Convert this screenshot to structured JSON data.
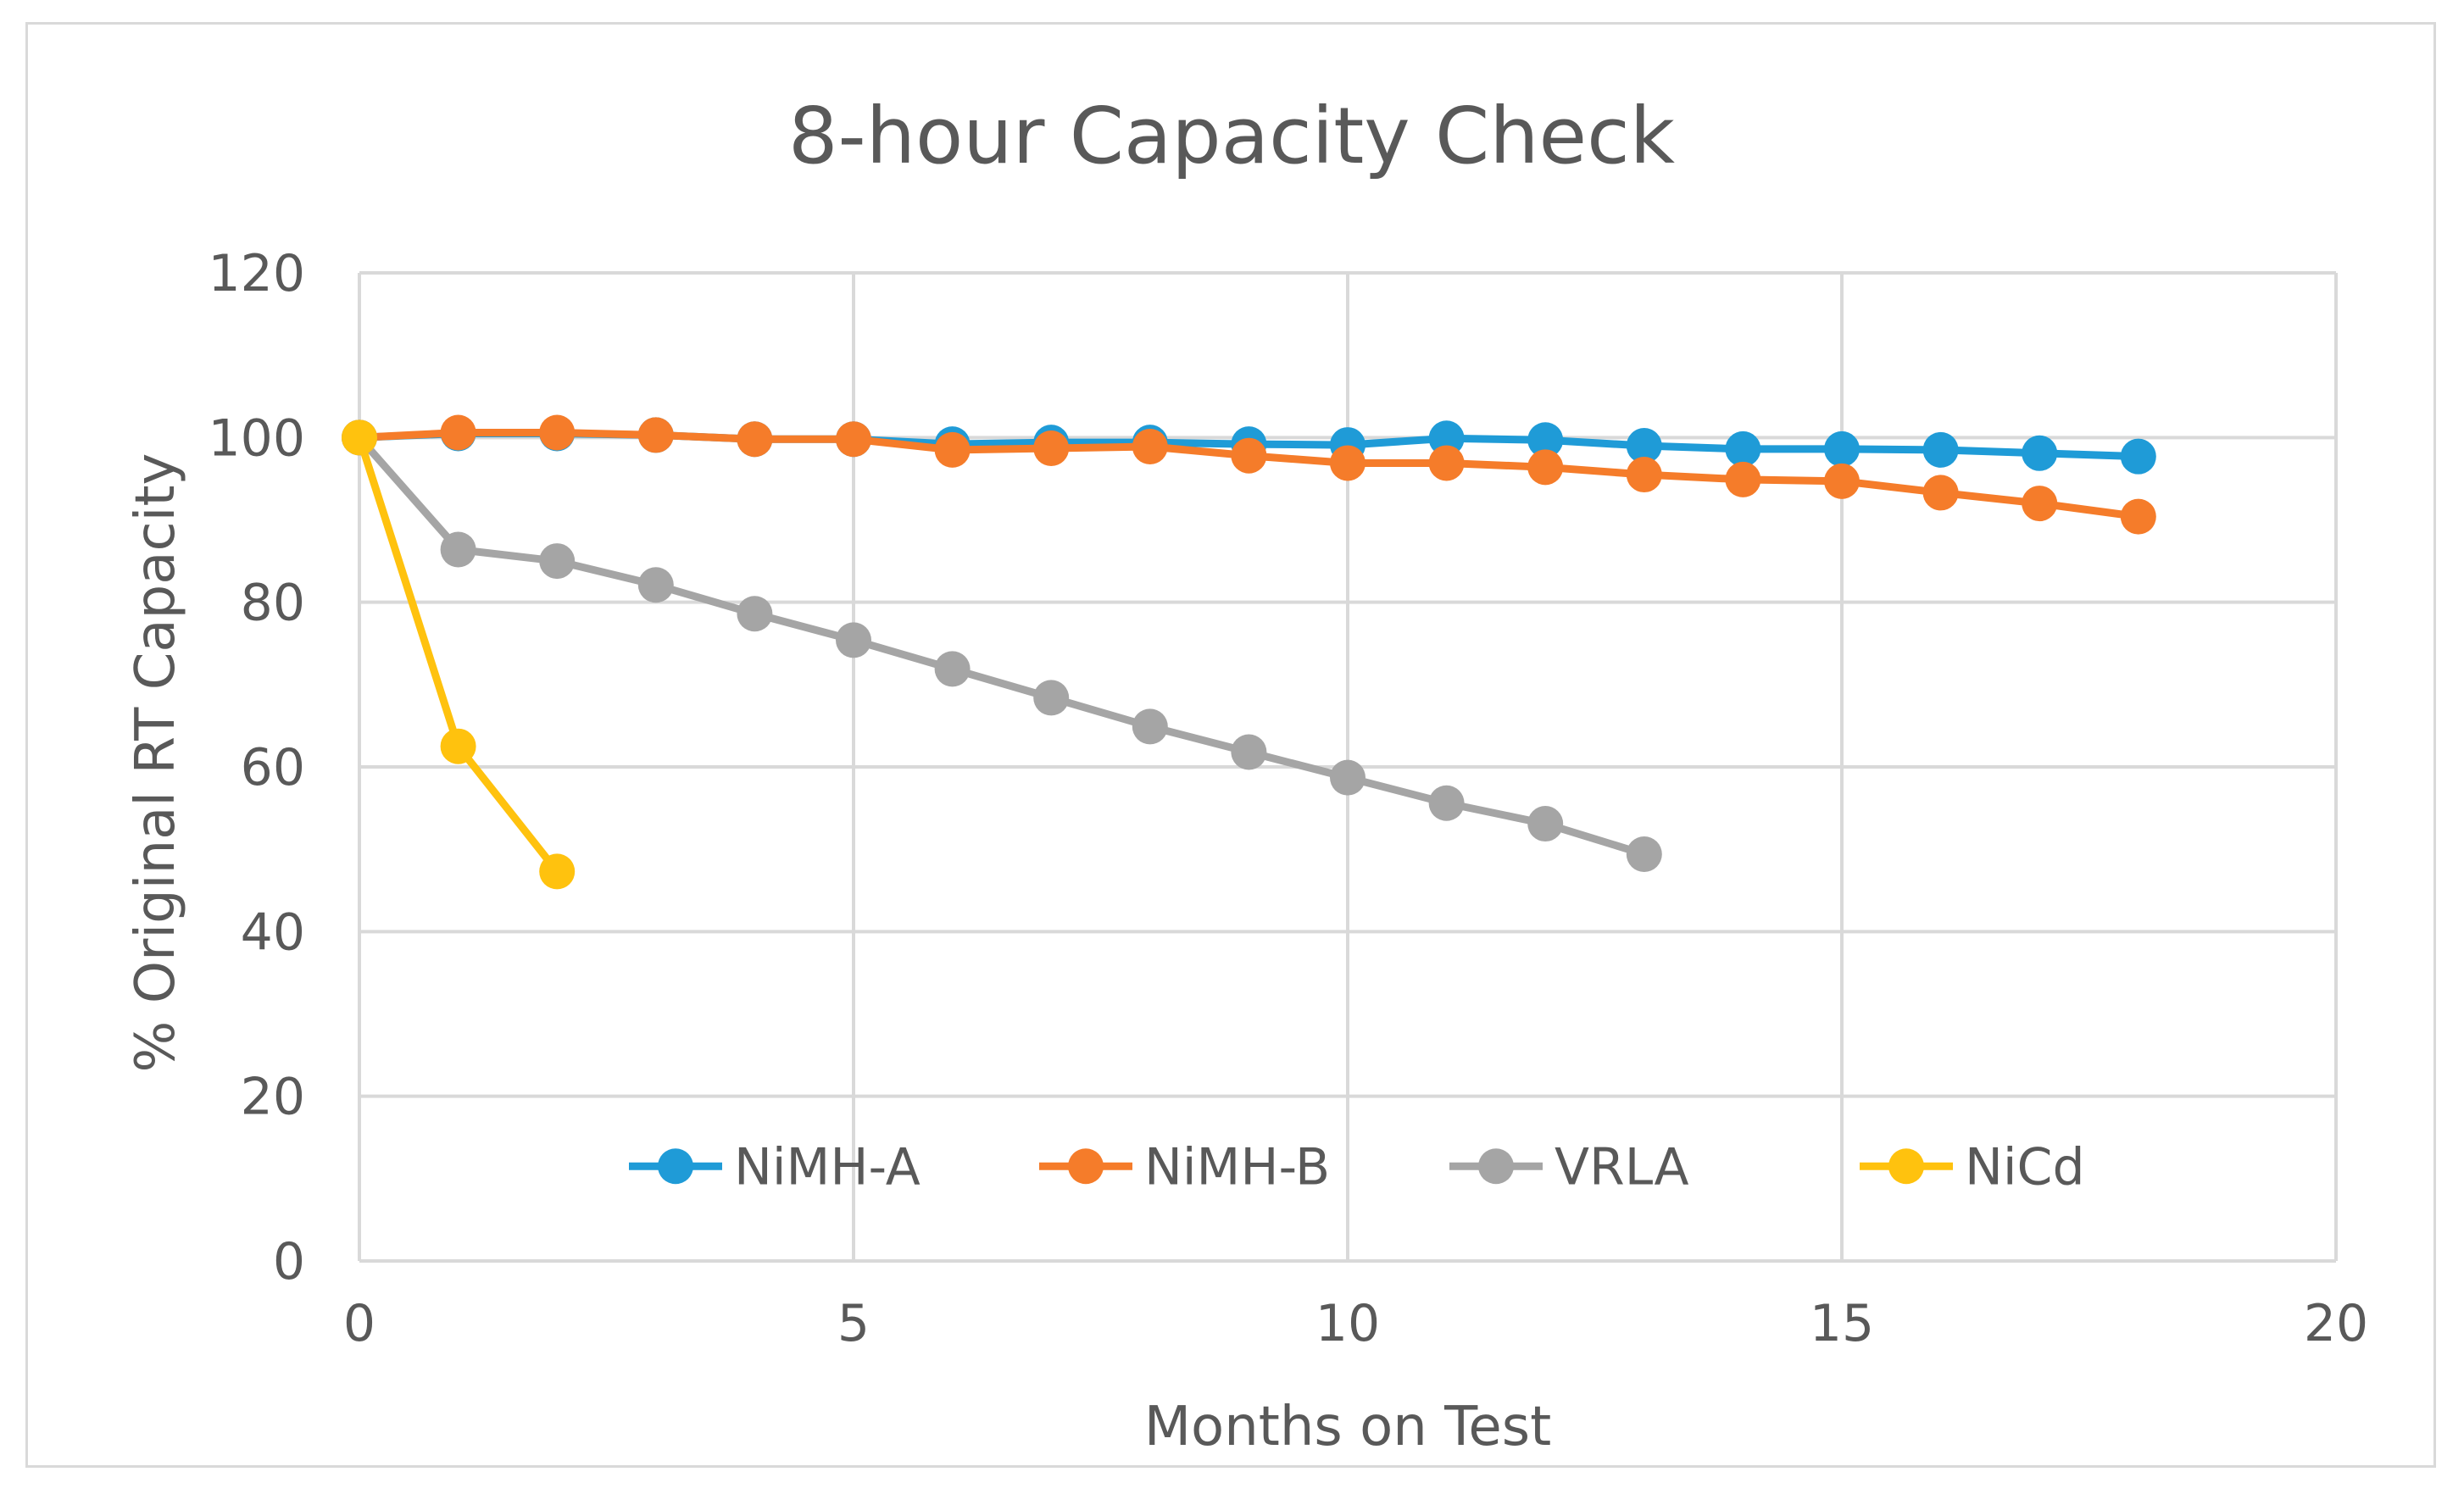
{
  "chart_data": {
    "type": "line",
    "title": "8-hour Capacity Check",
    "xlabel": "Months on Test",
    "ylabel": "% Original RT Capacity",
    "xlim": [
      0,
      20
    ],
    "ylim": [
      0,
      120
    ],
    "xticks": [
      0,
      5,
      10,
      15,
      20
    ],
    "yticks": [
      0,
      20,
      40,
      60,
      80,
      100,
      120
    ],
    "grid": true,
    "legend_position": "bottom-center-inside",
    "series": [
      {
        "name": "NiMH-A",
        "color": "#1F9BD7",
        "x": [
          0,
          1,
          2,
          3,
          4,
          5,
          6,
          7,
          8,
          9,
          10,
          11,
          12,
          13,
          14,
          15,
          16,
          17,
          18
        ],
        "y": [
          100,
          100.5,
          100.5,
          100.3,
          99.8,
          99.8,
          99.2,
          99.4,
          99.4,
          99.2,
          99.1,
          99.9,
          99.7,
          99.0,
          98.6,
          98.6,
          98.5,
          98.1,
          97.7
        ]
      },
      {
        "name": "NiMH-B",
        "color": "#F57C2A",
        "x": [
          0,
          1,
          2,
          3,
          4,
          5,
          6,
          7,
          8,
          9,
          10,
          11,
          12,
          13,
          14,
          15,
          16,
          17,
          18
        ],
        "y": [
          100,
          100.6,
          100.6,
          100.3,
          99.8,
          99.8,
          98.5,
          98.7,
          98.9,
          97.8,
          96.9,
          96.9,
          96.4,
          95.5,
          94.9,
          94.7,
          93.3,
          92.0,
          90.4
        ]
      },
      {
        "name": "VRLA",
        "color": "#A5A5A5",
        "x": [
          0,
          1,
          2,
          3,
          4,
          5,
          6,
          7,
          8,
          9,
          10,
          11,
          12,
          13
        ],
        "y": [
          100,
          86.4,
          85.0,
          82.1,
          78.6,
          75.4,
          71.9,
          68.4,
          64.9,
          61.8,
          58.7,
          55.6,
          53.1,
          49.4
        ]
      },
      {
        "name": "NiCd",
        "color": "#FFC20E",
        "x": [
          0,
          1,
          2
        ],
        "y": [
          100,
          62.5,
          47.3
        ]
      }
    ]
  }
}
